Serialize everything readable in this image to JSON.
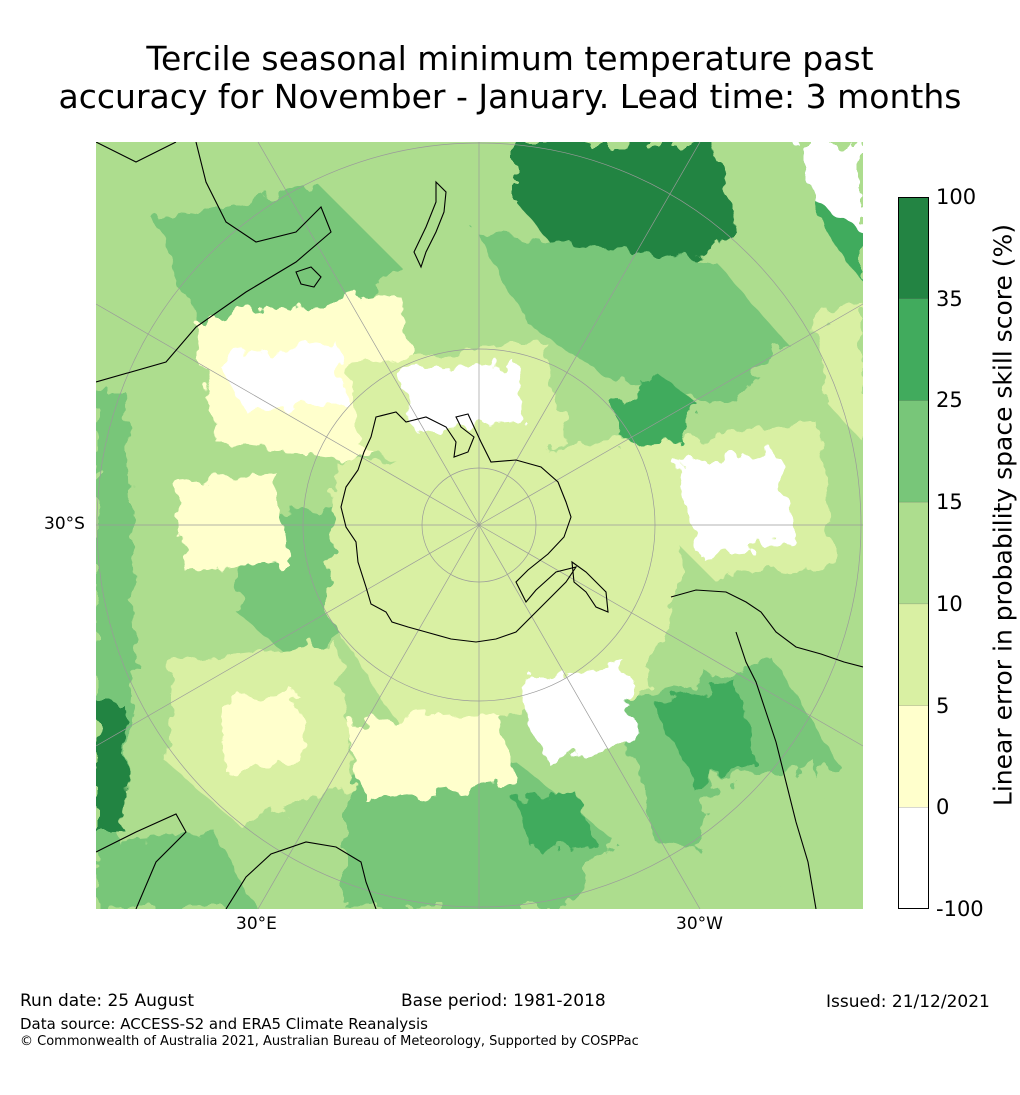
{
  "title": {
    "line1": "Tercile seasonal minimum temperature past",
    "line2": "accuracy for November - January. Lead time: 3 months"
  },
  "map": {
    "projection": "south-polar-stereographic",
    "lat_labels": [
      "30°S"
    ],
    "lon_labels": [
      "30°E",
      "30°W"
    ]
  },
  "legend": {
    "title": "Linear error in probability space skill score (%)",
    "ticks": [
      "100",
      "35",
      "25",
      "15",
      "10",
      "5",
      "0",
      "-100"
    ],
    "bins": [
      {
        "range": "35 to 100",
        "color": "#238443"
      },
      {
        "range": "25 to 35",
        "color": "#41ab5d"
      },
      {
        "range": "15 to 25",
        "color": "#78c679"
      },
      {
        "range": "10 to 15",
        "color": "#addd8e"
      },
      {
        "range": "5 to 10",
        "color": "#d9f0a3"
      },
      {
        "range": "0 to 5",
        "color": "#ffffcc"
      },
      {
        "range": "-100 to 0",
        "color": "#ffffff"
      }
    ]
  },
  "footer": {
    "run_date": "Run date: 25 August",
    "base_period": "Base period: 1981-2018",
    "issued": "Issued: 21/12/2021",
    "data_source": "Data source: ACCESS-S2 and ERA5 Climate Reanalysis",
    "copyright": "© Commonwealth of Australia 2021, Australian Bureau of Meteorology, Supported by COSPPac"
  }
}
